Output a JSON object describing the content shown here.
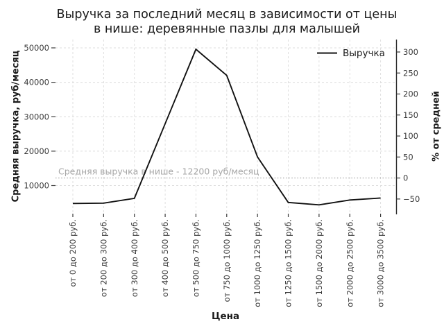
{
  "chart_data": {
    "type": "line",
    "title": "Выручка за последний месяц в зависимости от цены в нише: деревянные пазлы для малышей",
    "title_lines": [
      "Выручка за последний месяц в зависимости от цены",
      "в нише: деревянные пазлы для малышей"
    ],
    "xlabel": "Цена",
    "ylabel": "Средняя выручка, руб/месяц",
    "y2label": "% от средней",
    "categories": [
      "от 0 до 200 руб.",
      "от 200 до 300 руб.",
      "от 300 до 400 руб.",
      "от 400 до 500 руб.",
      "от 500 до 750 руб.",
      "от 750 до 1000 руб.",
      "от 1000 до 1250 руб.",
      "от 1250 до 1500 руб.",
      "от 1500 до 2000 руб.",
      "от 2000 до 2500 руб.",
      "от 3000 до 3500 руб."
    ],
    "series": [
      {
        "name": "Выручка",
        "color": "#111111",
        "values": [
          4800,
          4900,
          6300,
          28000,
          49600,
          42000,
          18300,
          5100,
          4400,
          5800,
          6400
        ]
      }
    ],
    "yticks": [
      10000,
      20000,
      30000,
      40000,
      50000
    ],
    "y2ticks": [
      -50,
      0,
      50,
      100,
      150,
      200,
      250,
      300
    ],
    "average_line": {
      "value": 12200,
      "label": "Средняя выручка в нише - 12200 руб/месяц"
    },
    "grid": true,
    "legend_position": "upper-right",
    "legend": [
      {
        "label": "Выручка",
        "color": "#111111"
      }
    ]
  },
  "colors": {
    "line": "#111111",
    "grid": "#dcdcdc",
    "avg_line": "#9a9a9a",
    "annotation": "#a6a6a6",
    "title_text": "#1a1a1a",
    "tick_text": "#3a3a3a",
    "spine": "#2a2a2a"
  }
}
